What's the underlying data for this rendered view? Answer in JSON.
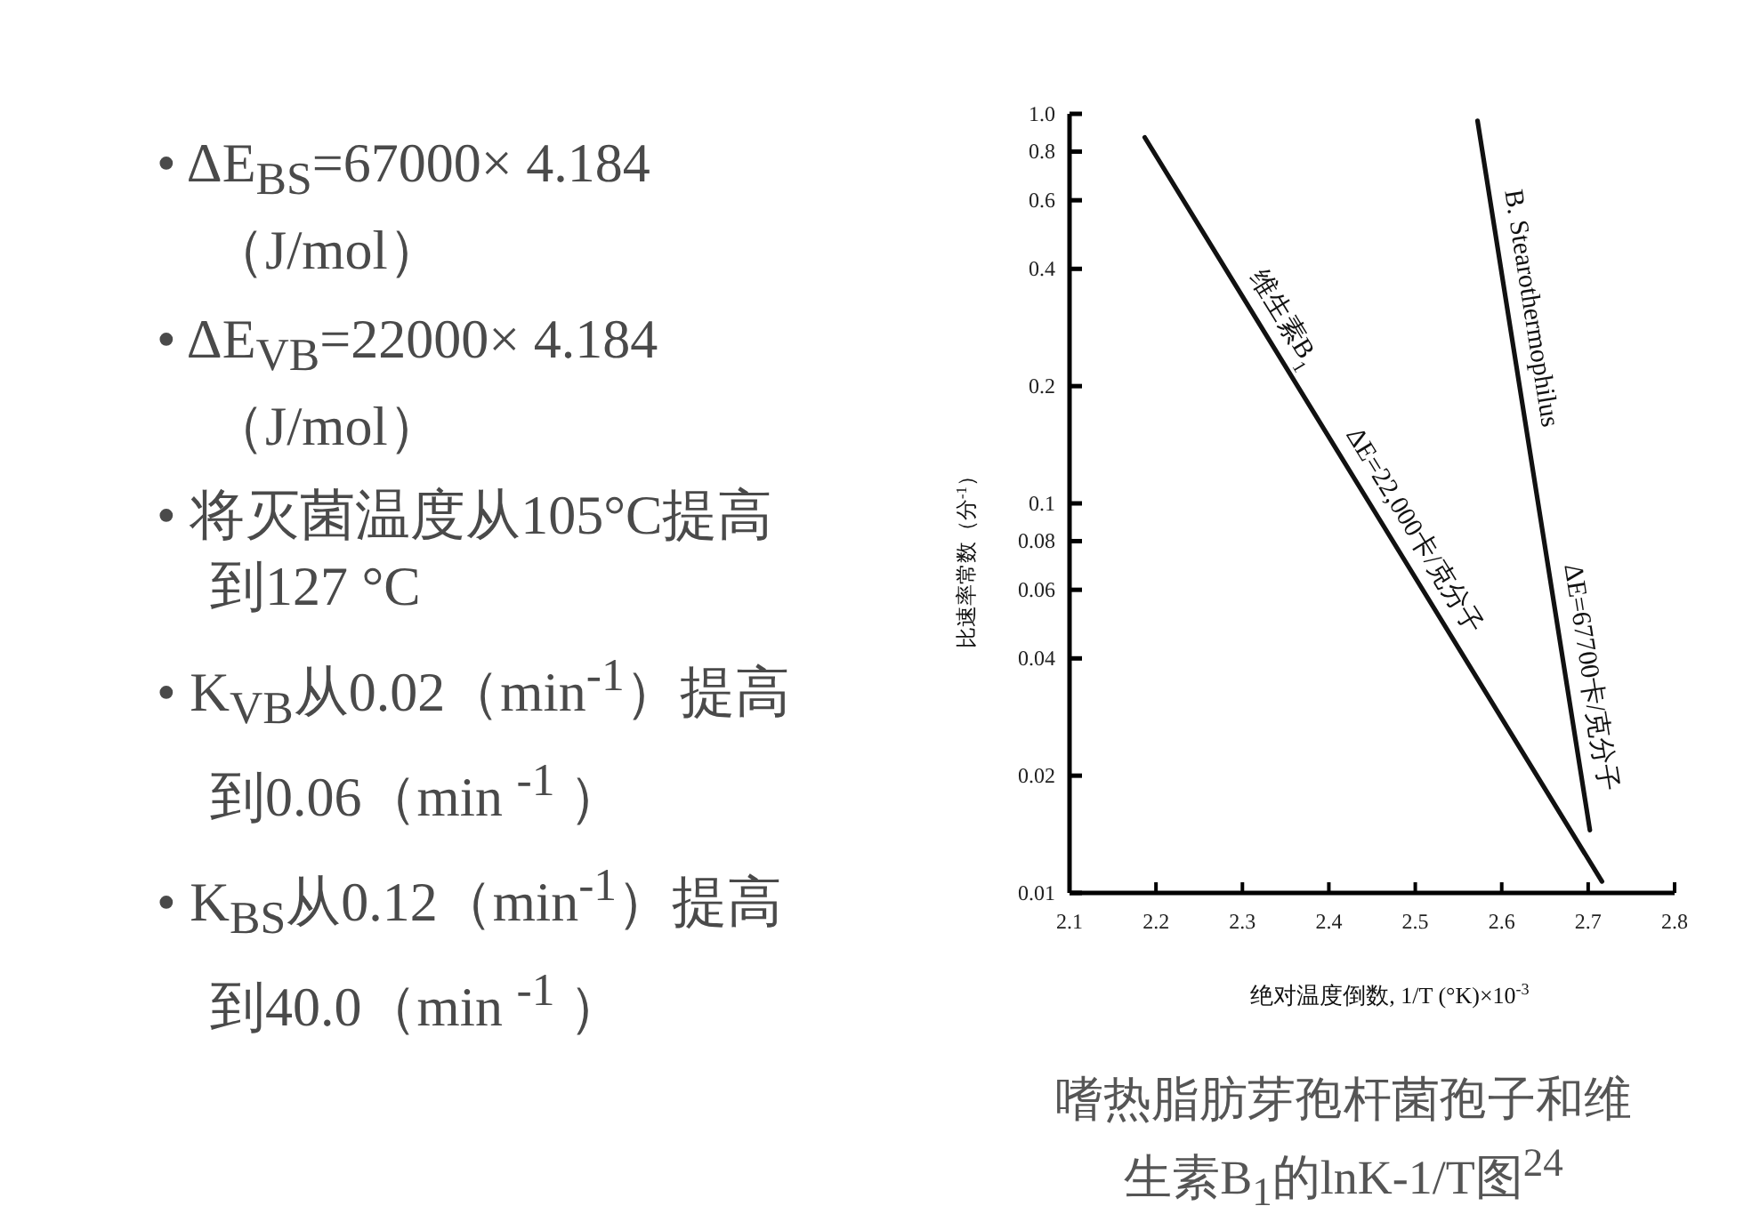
{
  "chart_data": {
    "type": "line",
    "title": "嗜热脂肪芽孢杆菌孢子和维生素B$_{1}$的lnK-1/T图$^{24}$",
    "xlabel": "绝对温度倒数, 1/T (°K)×10$^{-3}$",
    "ylabel": "比速率常数（分$^{-1}$）",
    "log": "y",
    "xlim": [
      2.1,
      2.8
    ],
    "ylim": [
      0.01,
      1.0
    ],
    "xticks": [
      2.1,
      2.2,
      2.3,
      2.4,
      2.5,
      2.6,
      2.7,
      2.8
    ],
    "yticks": [
      0.01,
      0.02,
      0.04,
      0.06,
      0.08,
      0.1,
      0.2,
      0.4,
      0.6,
      0.8,
      {
        "value": 1.0,
        "label": "1.0"
      }
    ],
    "grid": false,
    "marker": "none",
    "line_style": "solid",
    "series": [
      {
        "color": "#111111",
        "x": [
          2.187,
          2.716
        ],
        "values": [
          0.87,
          0.0107
        ]
      },
      {
        "color": "#111111",
        "x": [
          2.572,
          2.702
        ],
        "values": [
          0.96,
          0.0145
        ]
      }
    ],
    "annotations": [
      {
        "text": "维生素B$_{1}$",
        "x": 2.325,
        "y": 0.277
      },
      {
        "text": "B. Stearothermophilus",
        "x": 2.607,
        "y": 0.31
      },
      {
        "text": "ΔE=22,000卡/克分子",
        "x": 2.475,
        "y": 0.079
      },
      {
        "text": "ΔE=67700卡/克分子",
        "x": 2.675,
        "y": 0.035
      },
      "• ΔE$_{BS}$=67000× 4.184（J/mol）",
      "• ΔE$_{VB}$=22000× 4.184（J/mol）",
      "• 将灭菌温度从105°C提高到127 °C",
      "• K$_{VB}$从0.02（min$^{-1}$）提高到0.06（min $^{-1}$ ）",
      "• K$_{BS}$从0.12（min$^{-1}$）提高到40.0（min $^{-1}$ ）"
    ]
  }
}
